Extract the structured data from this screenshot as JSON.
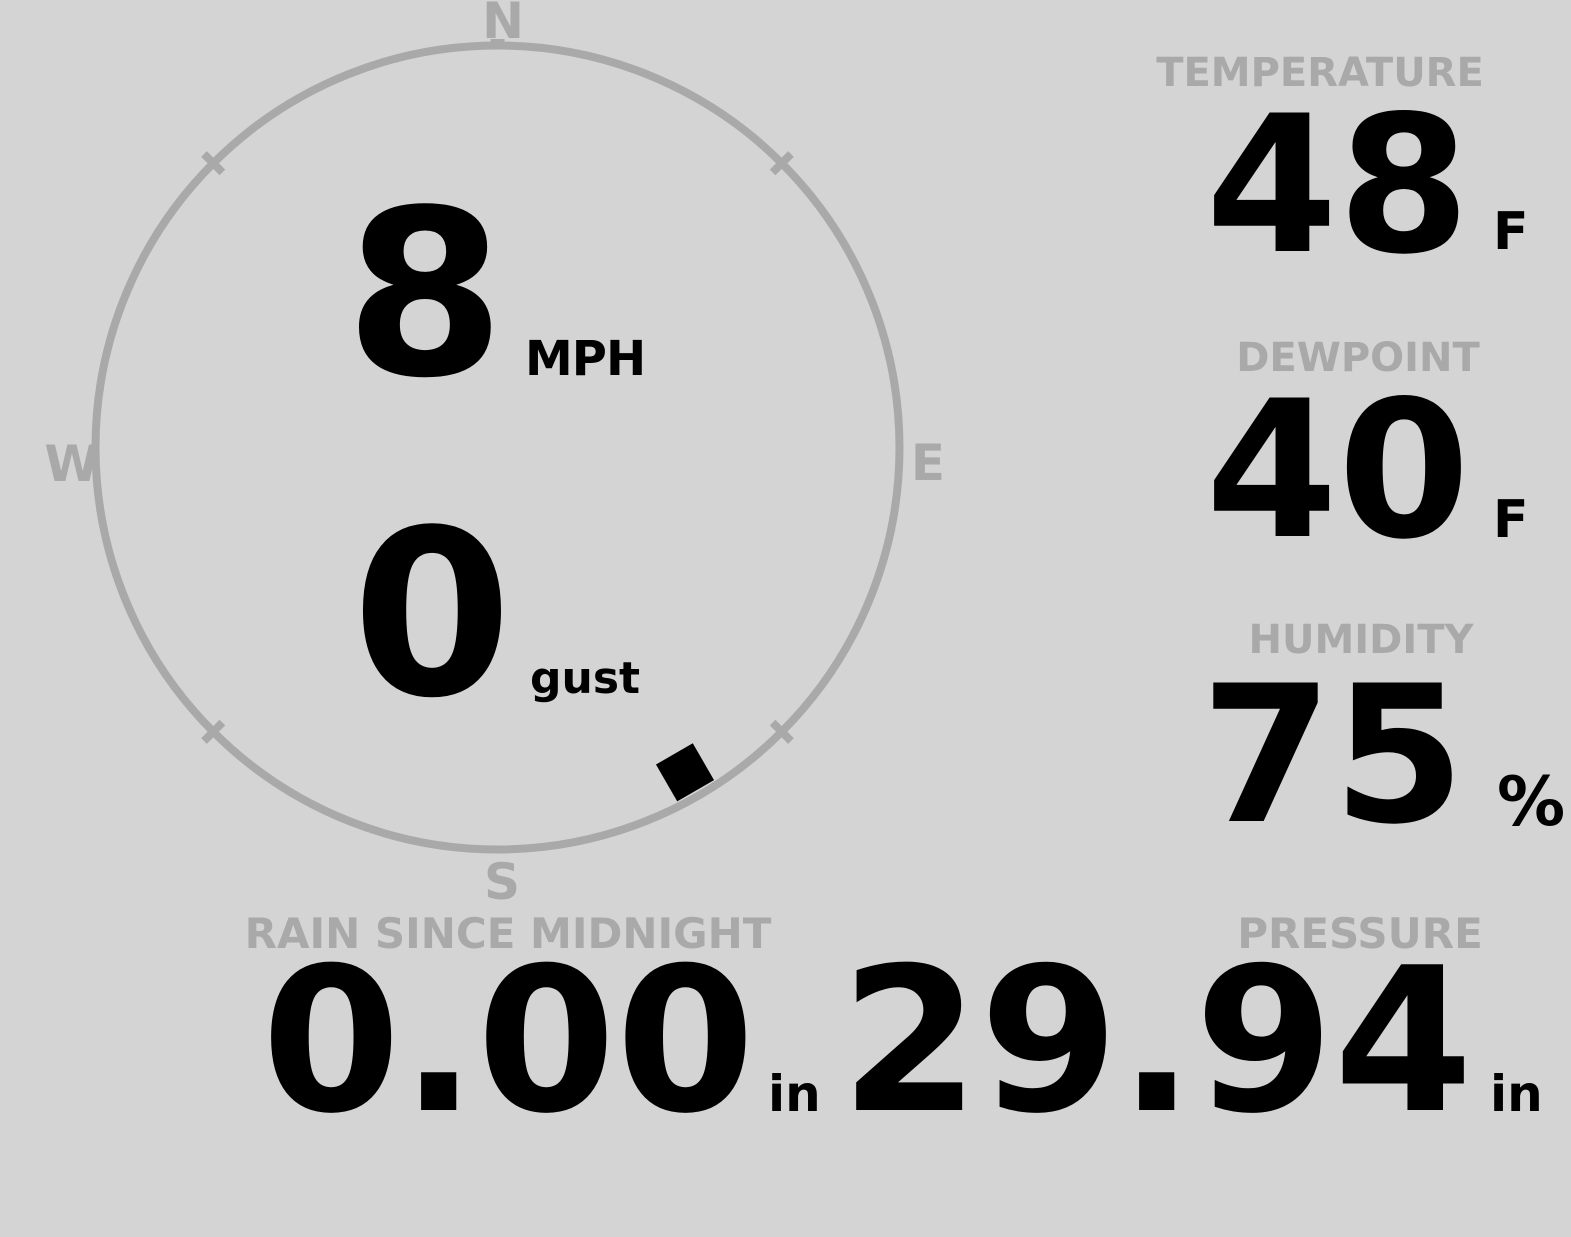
{
  "app": "weather-station-display",
  "colors": {
    "background": "#d4d4d4",
    "muted": "#a9a9a9",
    "value": "#000000"
  },
  "wind": {
    "speed": "8",
    "speed_unit": "MPH",
    "gust": "0",
    "gust_label": "gust",
    "direction_degrees": 150,
    "compass": {
      "north": "N",
      "east": "E",
      "south": "S",
      "west": "W"
    }
  },
  "readings": [
    {
      "id": "temperature",
      "label": "TEMPERATURE",
      "value": "48",
      "unit": "F"
    },
    {
      "id": "dewpoint",
      "label": "DEWPOINT",
      "value": "40",
      "unit": "F"
    },
    {
      "id": "humidity",
      "label": "HUMIDITY",
      "value": "75",
      "unit": "%"
    }
  ],
  "bottom": [
    {
      "id": "rain",
      "label": "RAIN SINCE MIDNIGHT",
      "value": "0.00",
      "unit": "in"
    },
    {
      "id": "pressure",
      "label": "PRESSURE",
      "value": "29.94",
      "unit": "in"
    }
  ]
}
